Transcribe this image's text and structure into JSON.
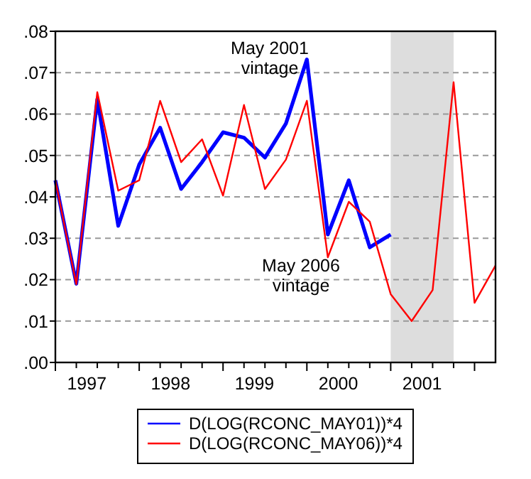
{
  "chart_data": {
    "type": "line",
    "x": [
      1997,
      1997.25,
      1997.5,
      1997.75,
      1998,
      1998.25,
      1998.5,
      1998.75,
      1999,
      1999.25,
      1999.5,
      1999.75,
      2000,
      2000.25,
      2000.5,
      2000.75,
      2001,
      2001.25,
      2001.5,
      2001.75,
      2002,
      2002.25
    ],
    "series": [
      {
        "name": "D(LOG(RCONC_MAY01))*4",
        "color": "#0000ff",
        "values": [
          0.044,
          0.019,
          0.0636,
          0.033,
          0.0478,
          0.0567,
          0.0419,
          0.0484,
          0.0556,
          0.0543,
          0.0495,
          0.0577,
          0.0732,
          0.0309,
          0.044,
          0.0278,
          0.0309,
          null,
          null,
          null,
          null,
          null
        ]
      },
      {
        "name": "D(LOG(RCONC_MAY06))*4",
        "color": "#ff0000",
        "values": [
          0.044,
          0.0189,
          0.0653,
          0.0415,
          0.044,
          0.0632,
          0.0484,
          0.0539,
          0.0403,
          0.0622,
          0.0419,
          0.049,
          0.0632,
          0.0254,
          0.0388,
          0.034,
          0.0165,
          0.01,
          0.0175,
          0.0677,
          0.0144,
          0.0234
        ]
      }
    ],
    "xlim": [
      1997,
      2002.25
    ],
    "xticks": [
      {
        "value": 1997,
        "label": null
      },
      {
        "value": 1997.25,
        "label": null
      },
      {
        "value": 1997.375,
        "label": "1997"
      },
      {
        "value": 1997.5,
        "label": null
      },
      {
        "value": 1997.75,
        "label": null
      },
      {
        "value": 1998,
        "label": null
      },
      {
        "value": 1998.25,
        "label": null
      },
      {
        "value": 1998.375,
        "label": "1998"
      },
      {
        "value": 1998.5,
        "label": null
      },
      {
        "value": 1998.75,
        "label": null
      },
      {
        "value": 1999,
        "label": null
      },
      {
        "value": 1999.25,
        "label": null
      },
      {
        "value": 1999.375,
        "label": "1999"
      },
      {
        "value": 1999.5,
        "label": null
      },
      {
        "value": 1999.75,
        "label": null
      },
      {
        "value": 2000,
        "label": null
      },
      {
        "value": 2000.25,
        "label": null
      },
      {
        "value": 2000.375,
        "label": "2000"
      },
      {
        "value": 2000.5,
        "label": null
      },
      {
        "value": 2000.75,
        "label": null
      },
      {
        "value": 2001,
        "label": null
      },
      {
        "value": 2001.25,
        "label": null
      },
      {
        "value": 2001.375,
        "label": "2001"
      },
      {
        "value": 2001.5,
        "label": null
      },
      {
        "value": 2001.75,
        "label": null
      },
      {
        "value": 2002,
        "label": null
      }
    ],
    "ylim": [
      0,
      0.08
    ],
    "yticks": [
      {
        "value": 0,
        "label": ".00"
      },
      {
        "value": 0.01,
        "label": ".01"
      },
      {
        "value": 0.02,
        "label": ".02"
      },
      {
        "value": 0.03,
        "label": ".03"
      },
      {
        "value": 0.04,
        "label": ".04"
      },
      {
        "value": 0.05,
        "label": ".05"
      },
      {
        "value": 0.06,
        "label": ".06"
      },
      {
        "value": 0.07,
        "label": ".07"
      },
      {
        "value": 0.08,
        "label": ".08"
      }
    ],
    "bands": [
      {
        "axis": "x",
        "from": 2001,
        "to": 2001.75,
        "color": "#dddddd"
      }
    ],
    "annotations": [
      "May 2001\nvintage",
      "May 2006\nvintage"
    ],
    "grid": "y",
    "legend": "bottom",
    "line_style": "solid",
    "marker": "none"
  }
}
